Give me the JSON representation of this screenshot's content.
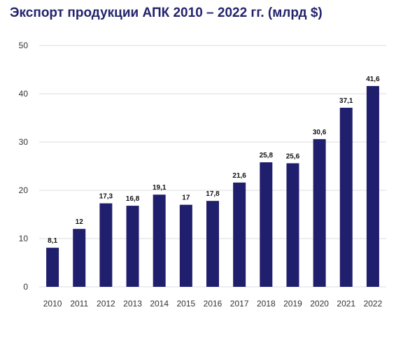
{
  "chart_data": {
    "type": "bar",
    "title": "Экспорт продукции АПК 2010 – 2022 гг. (млрд $)",
    "categories": [
      "2010",
      "2011",
      "2012",
      "2013",
      "2014",
      "2015",
      "2016",
      "2017",
      "2018",
      "2019",
      "2020",
      "2021",
      "2022"
    ],
    "values": [
      8.1,
      12,
      17.3,
      16.8,
      19.1,
      17,
      17.8,
      21.6,
      25.8,
      25.6,
      30.6,
      37.1,
      41.6
    ],
    "value_labels": [
      "8,1",
      "12",
      "17,3",
      "16,8",
      "19,1",
      "17",
      "17,8",
      "21,6",
      "25,8",
      "25,6",
      "30,6",
      "37,1",
      "41,6"
    ],
    "ylim": [
      0,
      50
    ],
    "yticks": [
      "0",
      "10",
      "20",
      "30",
      "40",
      "50"
    ],
    "grid": true,
    "bar_color": "#1f1f6e",
    "title_color": "#23236e"
  }
}
